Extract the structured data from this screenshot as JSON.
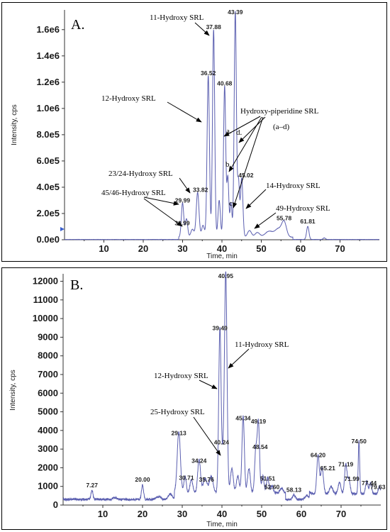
{
  "chart_data": [
    {
      "type": "line",
      "panel_label": "A.",
      "xlabel": "Time, min",
      "ylabel": "Intensity, cps",
      "xlim": [
        0,
        80
      ],
      "ylim": [
        0,
        1750000
      ],
      "x_ticks": [
        10,
        20,
        30,
        40,
        50,
        60,
        70
      ],
      "y_ticks": [
        {
          "value": 0,
          "label": "0.0e0"
        },
        {
          "value": 200000,
          "label": "2.0e5"
        },
        {
          "value": 400000,
          "label": "4.0e5"
        },
        {
          "value": 600000,
          "label": "6.0e5"
        },
        {
          "value": 800000,
          "label": "8.0e5"
        },
        {
          "value": 1000000,
          "label": "1.0e6"
        },
        {
          "value": 1200000,
          "label": "1.2e6"
        },
        {
          "value": 1400000,
          "label": "1.4e6"
        },
        {
          "value": 1600000,
          "label": "1.6e6"
        }
      ],
      "color": "#5b5fb0",
      "baseline": 2000,
      "peaks": [
        {
          "x": 29.99,
          "y": 260000,
          "label": "29.99",
          "w": 0.3
        },
        {
          "x": 30.99,
          "y": 140000,
          "label": "30.99",
          "w": 0.3
        },
        {
          "x": 32.5,
          "y": 60000,
          "label": "",
          "w": 0.4
        },
        {
          "x": 33.82,
          "y": 340000,
          "label": "33.82",
          "w": 0.35
        },
        {
          "x": 35.2,
          "y": 90000,
          "label": "",
          "w": 0.35
        },
        {
          "x": 36.52,
          "y": 1230000,
          "label": "36.52",
          "w": 0.3
        },
        {
          "x": 37.88,
          "y": 1580000,
          "label": "37.88",
          "w": 0.28
        },
        {
          "x": 39.3,
          "y": 280000,
          "label": "",
          "w": 0.3
        },
        {
          "x": 40.68,
          "y": 1150000,
          "label": "40.68",
          "w": 0.28
        },
        {
          "x": 41.5,
          "y": 450000,
          "label": "",
          "w": 0.25
        },
        {
          "x": 42.3,
          "y": 260000,
          "label": "",
          "w": 0.25
        },
        {
          "x": 43.39,
          "y": 1720000,
          "label": "43.39",
          "w": 0.28
        },
        {
          "x": 44.2,
          "y": 420000,
          "label": "",
          "w": 0.25
        },
        {
          "x": 45.02,
          "y": 450000,
          "label": "45.02",
          "w": 0.3
        },
        {
          "x": 47.0,
          "y": 50000,
          "label": "",
          "w": 0.5
        },
        {
          "x": 49.0,
          "y": 35000,
          "label": "",
          "w": 0.6
        },
        {
          "x": 52.0,
          "y": 45000,
          "label": "",
          "w": 1.0
        },
        {
          "x": 54.3,
          "y": 60000,
          "label": "",
          "w": 0.8
        },
        {
          "x": 55.78,
          "y": 115000,
          "label": "55.78",
          "w": 0.6
        },
        {
          "x": 61.81,
          "y": 100000,
          "label": "61.81",
          "w": 0.3
        },
        {
          "x": 66.0,
          "y": 12000,
          "label": "",
          "w": 0.3
        }
      ],
      "annotations": [
        {
          "text": "11-Hydroxy SRL",
          "arrow_to": [
            37.7,
            1570000
          ]
        },
        {
          "text": "12-Hydroxy SRL",
          "arrow_to": [
            36.3,
            890000
          ]
        },
        {
          "text": "Hydroxy-piperidine SRL",
          "sub": "(a–d)"
        },
        {
          "text": "a.",
          "arrow_to": [
            40.5,
            800000
          ]
        },
        {
          "text": "b.",
          "arrow_to": [
            41.3,
            420000
          ]
        },
        {
          "text": "c.",
          "arrow_to": [
            42.2,
            230000
          ]
        },
        {
          "text": "d.",
          "arrow_to": [
            43.2,
            730000
          ]
        },
        {
          "text": "23/24-Hydroxy SRL",
          "arrow_to": [
            32.2,
            290000
          ]
        },
        {
          "text": "45/46-Hydroxy SRL",
          "arrow_to": [
            29.9,
            240000
          ]
        },
        {
          "text": "14-Hydroxy SRL",
          "arrow_to": [
            44.9,
            230000
          ]
        },
        {
          "text": "49-Hydroxy SRL",
          "arrow_to": [
            48.0,
            80000
          ]
        }
      ]
    },
    {
      "type": "line",
      "panel_label": "B.",
      "xlabel": "Time, min",
      "ylabel": "Intensity, cps",
      "xlim": [
        0,
        80
      ],
      "ylim": [
        0,
        12400
      ],
      "x_ticks": [
        10,
        20,
        30,
        40,
        50,
        60,
        70
      ],
      "y_ticks": [
        {
          "value": 0,
          "label": "0"
        },
        {
          "value": 1000,
          "label": "1000"
        },
        {
          "value": 2000,
          "label": "2000"
        },
        {
          "value": 3000,
          "label": "3000"
        },
        {
          "value": 4000,
          "label": "4000"
        },
        {
          "value": 5000,
          "label": "5000"
        },
        {
          "value": 6000,
          "label": "6000"
        },
        {
          "value": 7000,
          "label": "7000"
        },
        {
          "value": 8000,
          "label": "8000"
        },
        {
          "value": 9000,
          "label": "9000"
        },
        {
          "value": 10000,
          "label": "10000"
        },
        {
          "value": 11000,
          "label": "11000"
        },
        {
          "value": 12000,
          "label": "12000"
        }
      ],
      "color": "#5b5fb0",
      "baseline": 300,
      "peaks": [
        {
          "x": 7.27,
          "y": 500,
          "label": "7.27",
          "w": 0.25
        },
        {
          "x": 13.0,
          "y": 100,
          "label": "",
          "w": 0.5
        },
        {
          "x": 20.0,
          "y": 800,
          "label": "20.00",
          "w": 0.25
        },
        {
          "x": 24.0,
          "y": 150,
          "label": "",
          "w": 0.6
        },
        {
          "x": 27.0,
          "y": 300,
          "label": "",
          "w": 0.5
        },
        {
          "x": 29.13,
          "y": 3300,
          "label": "29.13",
          "w": 0.4
        },
        {
          "x": 30.71,
          "y": 900,
          "label": "30.71",
          "w": 0.3
        },
        {
          "x": 32.3,
          "y": 700,
          "label": "",
          "w": 0.35
        },
        {
          "x": 34.24,
          "y": 1800,
          "label": "34.24",
          "w": 0.35
        },
        {
          "x": 35.76,
          "y": 800,
          "label": "35.76",
          "w": 0.5
        },
        {
          "x": 37.3,
          "y": 900,
          "label": "",
          "w": 0.45
        },
        {
          "x": 39.49,
          "y": 8900,
          "label": "39.49",
          "w": 0.3
        },
        {
          "x": 40.24,
          "y": 1400,
          "label": "40.24",
          "w": 0.25
        },
        {
          "x": 40.95,
          "y": 11900,
          "label": "40.95",
          "w": 0.32
        },
        {
          "x": 42.5,
          "y": 1300,
          "label": "",
          "w": 0.35
        },
        {
          "x": 44.0,
          "y": 900,
          "label": "",
          "w": 0.35
        },
        {
          "x": 45.34,
          "y": 4100,
          "label": "45.34",
          "w": 0.3
        },
        {
          "x": 46.8,
          "y": 1300,
          "label": "",
          "w": 0.35
        },
        {
          "x": 48.54,
          "y": 2300,
          "label": "48.54",
          "w": 0.3
        },
        {
          "x": 49.19,
          "y": 3700,
          "label": "49.19",
          "w": 0.28
        },
        {
          "x": 50.3,
          "y": 900,
          "label": "",
          "w": 0.3
        },
        {
          "x": 51.51,
          "y": 850,
          "label": "51.51",
          "w": 0.3
        },
        {
          "x": 52.6,
          "y": 400,
          "label": "52.60",
          "w": 0.3
        },
        {
          "x": 55.0,
          "y": 250,
          "label": "",
          "w": 0.4
        },
        {
          "x": 58.13,
          "y": 250,
          "label": "58.13",
          "w": 0.35
        },
        {
          "x": 61.5,
          "y": 200,
          "label": "",
          "w": 0.5
        },
        {
          "x": 64.2,
          "y": 2100,
          "label": "64.20",
          "w": 0.3
        },
        {
          "x": 65.21,
          "y": 1400,
          "label": "65.21",
          "w": 0.35
        },
        {
          "x": 67.5,
          "y": 400,
          "label": "",
          "w": 0.4
        },
        {
          "x": 69.6,
          "y": 600,
          "label": "",
          "w": 0.35
        },
        {
          "x": 71.19,
          "y": 1600,
          "label": "71.19",
          "w": 0.3
        },
        {
          "x": 71.99,
          "y": 800,
          "label": "71.99",
          "w": 0.3
        },
        {
          "x": 74.5,
          "y": 2850,
          "label": "74.50",
          "w": 0.18
        },
        {
          "x": 76.5,
          "y": 700,
          "label": "",
          "w": 0.3
        },
        {
          "x": 77.44,
          "y": 600,
          "label": "77.44",
          "w": 0.25
        },
        {
          "x": 79.63,
          "y": 400,
          "label": "79.63",
          "w": 0.25
        }
      ],
      "annotations": [
        {
          "text": "11-Hydroxy SRL",
          "arrow_to": [
            41.2,
            8200
          ]
        },
        {
          "text": "12-Hydroxy SRL",
          "arrow_to": [
            39.6,
            7000
          ]
        },
        {
          "text": "25-Hydroxy SRL",
          "arrow_to": [
            40.1,
            1400
          ]
        }
      ]
    }
  ]
}
